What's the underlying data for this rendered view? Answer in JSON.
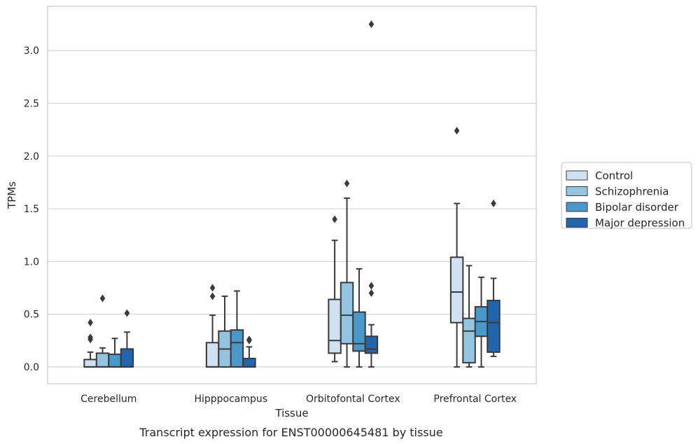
{
  "chart_data": {
    "type": "box",
    "xlabel": "Tissue",
    "ylabel": "TPMs",
    "caption": "Transcript expression for ENST00000645481 by tissue",
    "ylim": [
      -0.16,
      3.42
    ],
    "yticks": [
      "0.0",
      "0.5",
      "1.0",
      "1.5",
      "2.0",
      "2.5",
      "3.0"
    ],
    "grid": "horizontal",
    "legend_position": "right",
    "categories": [
      "Cerebellum",
      "Hipppocampus",
      "Orbitofontal Cortex",
      "Prefrontal Cortex"
    ],
    "series": [
      {
        "name": "Control",
        "color": "#d0e1f2",
        "boxes": [
          {
            "min": 0.0,
            "q1": 0.0,
            "median": 0.0,
            "q3": 0.07,
            "max": 0.14,
            "outliers": [
              0.42,
              0.28,
              0.26
            ]
          },
          {
            "min": 0.0,
            "q1": 0.0,
            "median": 0.0,
            "q3": 0.23,
            "max": 0.49,
            "outliers": [
              0.75,
              0.67
            ]
          },
          {
            "min": 0.05,
            "q1": 0.13,
            "median": 0.25,
            "q3": 0.64,
            "max": 1.2,
            "outliers": [
              1.4
            ]
          },
          {
            "min": 0.0,
            "q1": 0.42,
            "median": 0.71,
            "q3": 1.04,
            "max": 1.55,
            "outliers": [
              2.24
            ]
          }
        ]
      },
      {
        "name": "Schizophrenia",
        "color": "#94c4df",
        "boxes": [
          {
            "min": 0.0,
            "q1": 0.0,
            "median": 0.0,
            "q3": 0.13,
            "max": 0.18,
            "outliers": [
              0.65
            ]
          },
          {
            "min": 0.0,
            "q1": 0.0,
            "median": 0.17,
            "q3": 0.34,
            "max": 0.67,
            "outliers": []
          },
          {
            "min": 0.0,
            "q1": 0.22,
            "median": 0.49,
            "q3": 0.8,
            "max": 1.6,
            "outliers": [
              1.74
            ]
          },
          {
            "min": 0.0,
            "q1": 0.04,
            "median": 0.34,
            "q3": 0.46,
            "max": 0.96,
            "outliers": []
          }
        ]
      },
      {
        "name": "Bipolar disorder",
        "color": "#4a98c9",
        "boxes": [
          {
            "min": 0.0,
            "q1": 0.0,
            "median": 0.0,
            "q3": 0.12,
            "max": 0.27,
            "outliers": []
          },
          {
            "min": 0.0,
            "q1": 0.0,
            "median": 0.23,
            "q3": 0.35,
            "max": 0.72,
            "outliers": []
          },
          {
            "min": 0.0,
            "q1": 0.15,
            "median": 0.22,
            "q3": 0.52,
            "max": 0.93,
            "outliers": []
          },
          {
            "min": 0.0,
            "q1": 0.29,
            "median": 0.43,
            "q3": 0.57,
            "max": 0.85,
            "outliers": []
          }
        ]
      },
      {
        "name": "Major depression",
        "color": "#2166ac",
        "boxes": [
          {
            "min": 0.0,
            "q1": 0.0,
            "median": 0.0,
            "q3": 0.17,
            "max": 0.33,
            "outliers": [
              0.51
            ]
          },
          {
            "min": 0.0,
            "q1": 0.0,
            "median": 0.0,
            "q3": 0.08,
            "max": 0.19,
            "outliers": [
              0.26,
              0.25
            ]
          },
          {
            "min": 0.0,
            "q1": 0.13,
            "median": 0.17,
            "q3": 0.29,
            "max": 0.4,
            "outliers": [
              0.77,
              0.7,
              3.25
            ]
          },
          {
            "min": 0.1,
            "q1": 0.14,
            "median": 0.42,
            "q3": 0.63,
            "max": 0.84,
            "outliers": [
              1.55
            ]
          }
        ]
      }
    ]
  }
}
